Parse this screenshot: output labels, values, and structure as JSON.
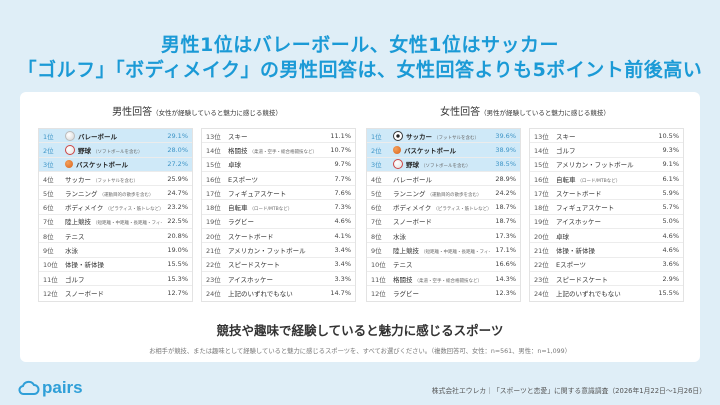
{
  "headline": {
    "line1": "男性1位はバレーボール、女性1位はサッカー",
    "line2": "「ゴルフ」「ボディメイク」の男性回答は、女性回答よりも5ポイント前後高い"
  },
  "card": {
    "title": "競技や趣味で経験していると魅力に感じるスポーツ",
    "note": "お相手が競技、または趣味として経験していると魅力に感じるスポーツを、すべてお選びください。（複数回答可、女性：n=561、男性：n=1,099）"
  },
  "footer": {
    "logo": "pairs",
    "source": "株式会社エウレカ｜「スポーツと恋愛」に関する意識調査（2026年1月22日〜1月26日）"
  },
  "colors": {
    "accent": "#1b9ad6",
    "highlight": "#cfe9f8",
    "background": "#dfeef7"
  },
  "chart_data": [
    {
      "type": "table",
      "title": "男性回答",
      "subtitle": "（女性が経験していると魅力に感じる競技）",
      "rows": [
        {
          "rank": "1位",
          "name": "バレーボール",
          "note": "",
          "value": "29.1%",
          "icon": "volleyball-icon"
        },
        {
          "rank": "2位",
          "name": "野球",
          "note": "（ソフトボールを含む）",
          "value": "28.0%",
          "icon": "baseball-icon"
        },
        {
          "rank": "3位",
          "name": "バスケットボール",
          "note": "",
          "value": "27.2%",
          "icon": "basketball-icon"
        },
        {
          "rank": "4位",
          "name": "サッカー",
          "note": "（フットサルを含む）",
          "value": "25.9%"
        },
        {
          "rank": "5位",
          "name": "ランニング",
          "note": "（運動目的の散歩を含む）",
          "value": "24.7%"
        },
        {
          "rank": "6位",
          "name": "ボディメイク",
          "note": "（ピラティス・筋トレなど）",
          "value": "23.2%"
        },
        {
          "rank": "7位",
          "name": "陸上競技",
          "note": "（短距離・中距離・長距離・フィールド）",
          "value": "22.5%"
        },
        {
          "rank": "8位",
          "name": "テニス",
          "note": "",
          "value": "20.8%"
        },
        {
          "rank": "9位",
          "name": "水泳",
          "note": "",
          "value": "19.0%"
        },
        {
          "rank": "10位",
          "name": "体操・新体操",
          "note": "",
          "value": "15.5%"
        },
        {
          "rank": "11位",
          "name": "ゴルフ",
          "note": "",
          "value": "15.3%"
        },
        {
          "rank": "12位",
          "name": "スノーボード",
          "note": "",
          "value": "12.7%"
        },
        {
          "rank": "13位",
          "name": "スキー",
          "note": "",
          "value": "11.1%"
        },
        {
          "rank": "14位",
          "name": "格闘技",
          "note": "（柔道・空手・総合格闘技など）",
          "value": "10.7%"
        },
        {
          "rank": "15位",
          "name": "卓球",
          "note": "",
          "value": "9.7%"
        },
        {
          "rank": "16位",
          "name": "Eスポーツ",
          "note": "",
          "value": "7.7%"
        },
        {
          "rank": "17位",
          "name": "フィギュアスケート",
          "note": "",
          "value": "7.6%"
        },
        {
          "rank": "18位",
          "name": "自転車",
          "note": "（ロード/MTBなど）",
          "value": "7.3%"
        },
        {
          "rank": "19位",
          "name": "ラグビー",
          "note": "",
          "value": "4.6%"
        },
        {
          "rank": "20位",
          "name": "スケートボード",
          "note": "",
          "value": "4.1%"
        },
        {
          "rank": "21位",
          "name": "アメリカン・フットボール",
          "note": "",
          "value": "3.4%"
        },
        {
          "rank": "22位",
          "name": "スピードスケート",
          "note": "",
          "value": "3.4%"
        },
        {
          "rank": "23位",
          "name": "アイスホッケー",
          "note": "",
          "value": "3.3%"
        },
        {
          "rank": "24位",
          "name": "上記のいずれでもない",
          "note": "",
          "value": "14.7%"
        }
      ]
    },
    {
      "type": "table",
      "title": "女性回答",
      "subtitle": "（男性が経験していると魅力に感じる競技）",
      "rows": [
        {
          "rank": "1位",
          "name": "サッカー",
          "note": "（フットサルを含む）",
          "value": "39.6%",
          "icon": "soccer-ball-icon"
        },
        {
          "rank": "2位",
          "name": "バスケットボール",
          "note": "",
          "value": "38.9%",
          "icon": "basketball-icon"
        },
        {
          "rank": "3位",
          "name": "野球",
          "note": "（ソフトボールを含む）",
          "value": "38.5%",
          "icon": "baseball-icon"
        },
        {
          "rank": "4位",
          "name": "バレーボール",
          "note": "",
          "value": "28.9%"
        },
        {
          "rank": "5位",
          "name": "ランニング",
          "note": "（運動目的の散歩を含む）",
          "value": "24.2%"
        },
        {
          "rank": "6位",
          "name": "ボディメイク",
          "note": "（ピラティス・筋トレなど）",
          "value": "18.7%"
        },
        {
          "rank": "7位",
          "name": "スノーボード",
          "note": "",
          "value": "18.7%"
        },
        {
          "rank": "8位",
          "name": "水泳",
          "note": "",
          "value": "17.3%"
        },
        {
          "rank": "9位",
          "name": "陸上競技",
          "note": "（短距離・中距離・長距離・フィールド）",
          "value": "17.1%"
        },
        {
          "rank": "10位",
          "name": "テニス",
          "note": "",
          "value": "16.6%"
        },
        {
          "rank": "11位",
          "name": "格闘技",
          "note": "（柔道・空手・総合格闘技など）",
          "value": "14.3%"
        },
        {
          "rank": "12位",
          "name": "ラグビー",
          "note": "",
          "value": "12.3%"
        },
        {
          "rank": "13位",
          "name": "スキー",
          "note": "",
          "value": "10.5%"
        },
        {
          "rank": "14位",
          "name": "ゴルフ",
          "note": "",
          "value": "9.3%"
        },
        {
          "rank": "15位",
          "name": "アメリカン・フットボール",
          "note": "",
          "value": "9.1%"
        },
        {
          "rank": "16位",
          "name": "自転車",
          "note": "（ロード/MTBなど）",
          "value": "6.1%"
        },
        {
          "rank": "17位",
          "name": "スケートボード",
          "note": "",
          "value": "5.9%"
        },
        {
          "rank": "18位",
          "name": "フィギュアスケート",
          "note": "",
          "value": "5.7%"
        },
        {
          "rank": "19位",
          "name": "アイスホッケー",
          "note": "",
          "value": "5.0%"
        },
        {
          "rank": "20位",
          "name": "卓球",
          "note": "",
          "value": "4.6%"
        },
        {
          "rank": "21位",
          "name": "体操・新体操",
          "note": "",
          "value": "4.6%"
        },
        {
          "rank": "22位",
          "name": "Eスポーツ",
          "note": "",
          "value": "3.6%"
        },
        {
          "rank": "23位",
          "name": "スピードスケート",
          "note": "",
          "value": "2.9%"
        },
        {
          "rank": "24位",
          "name": "上記のいずれでもない",
          "note": "",
          "value": "15.5%"
        }
      ]
    }
  ]
}
